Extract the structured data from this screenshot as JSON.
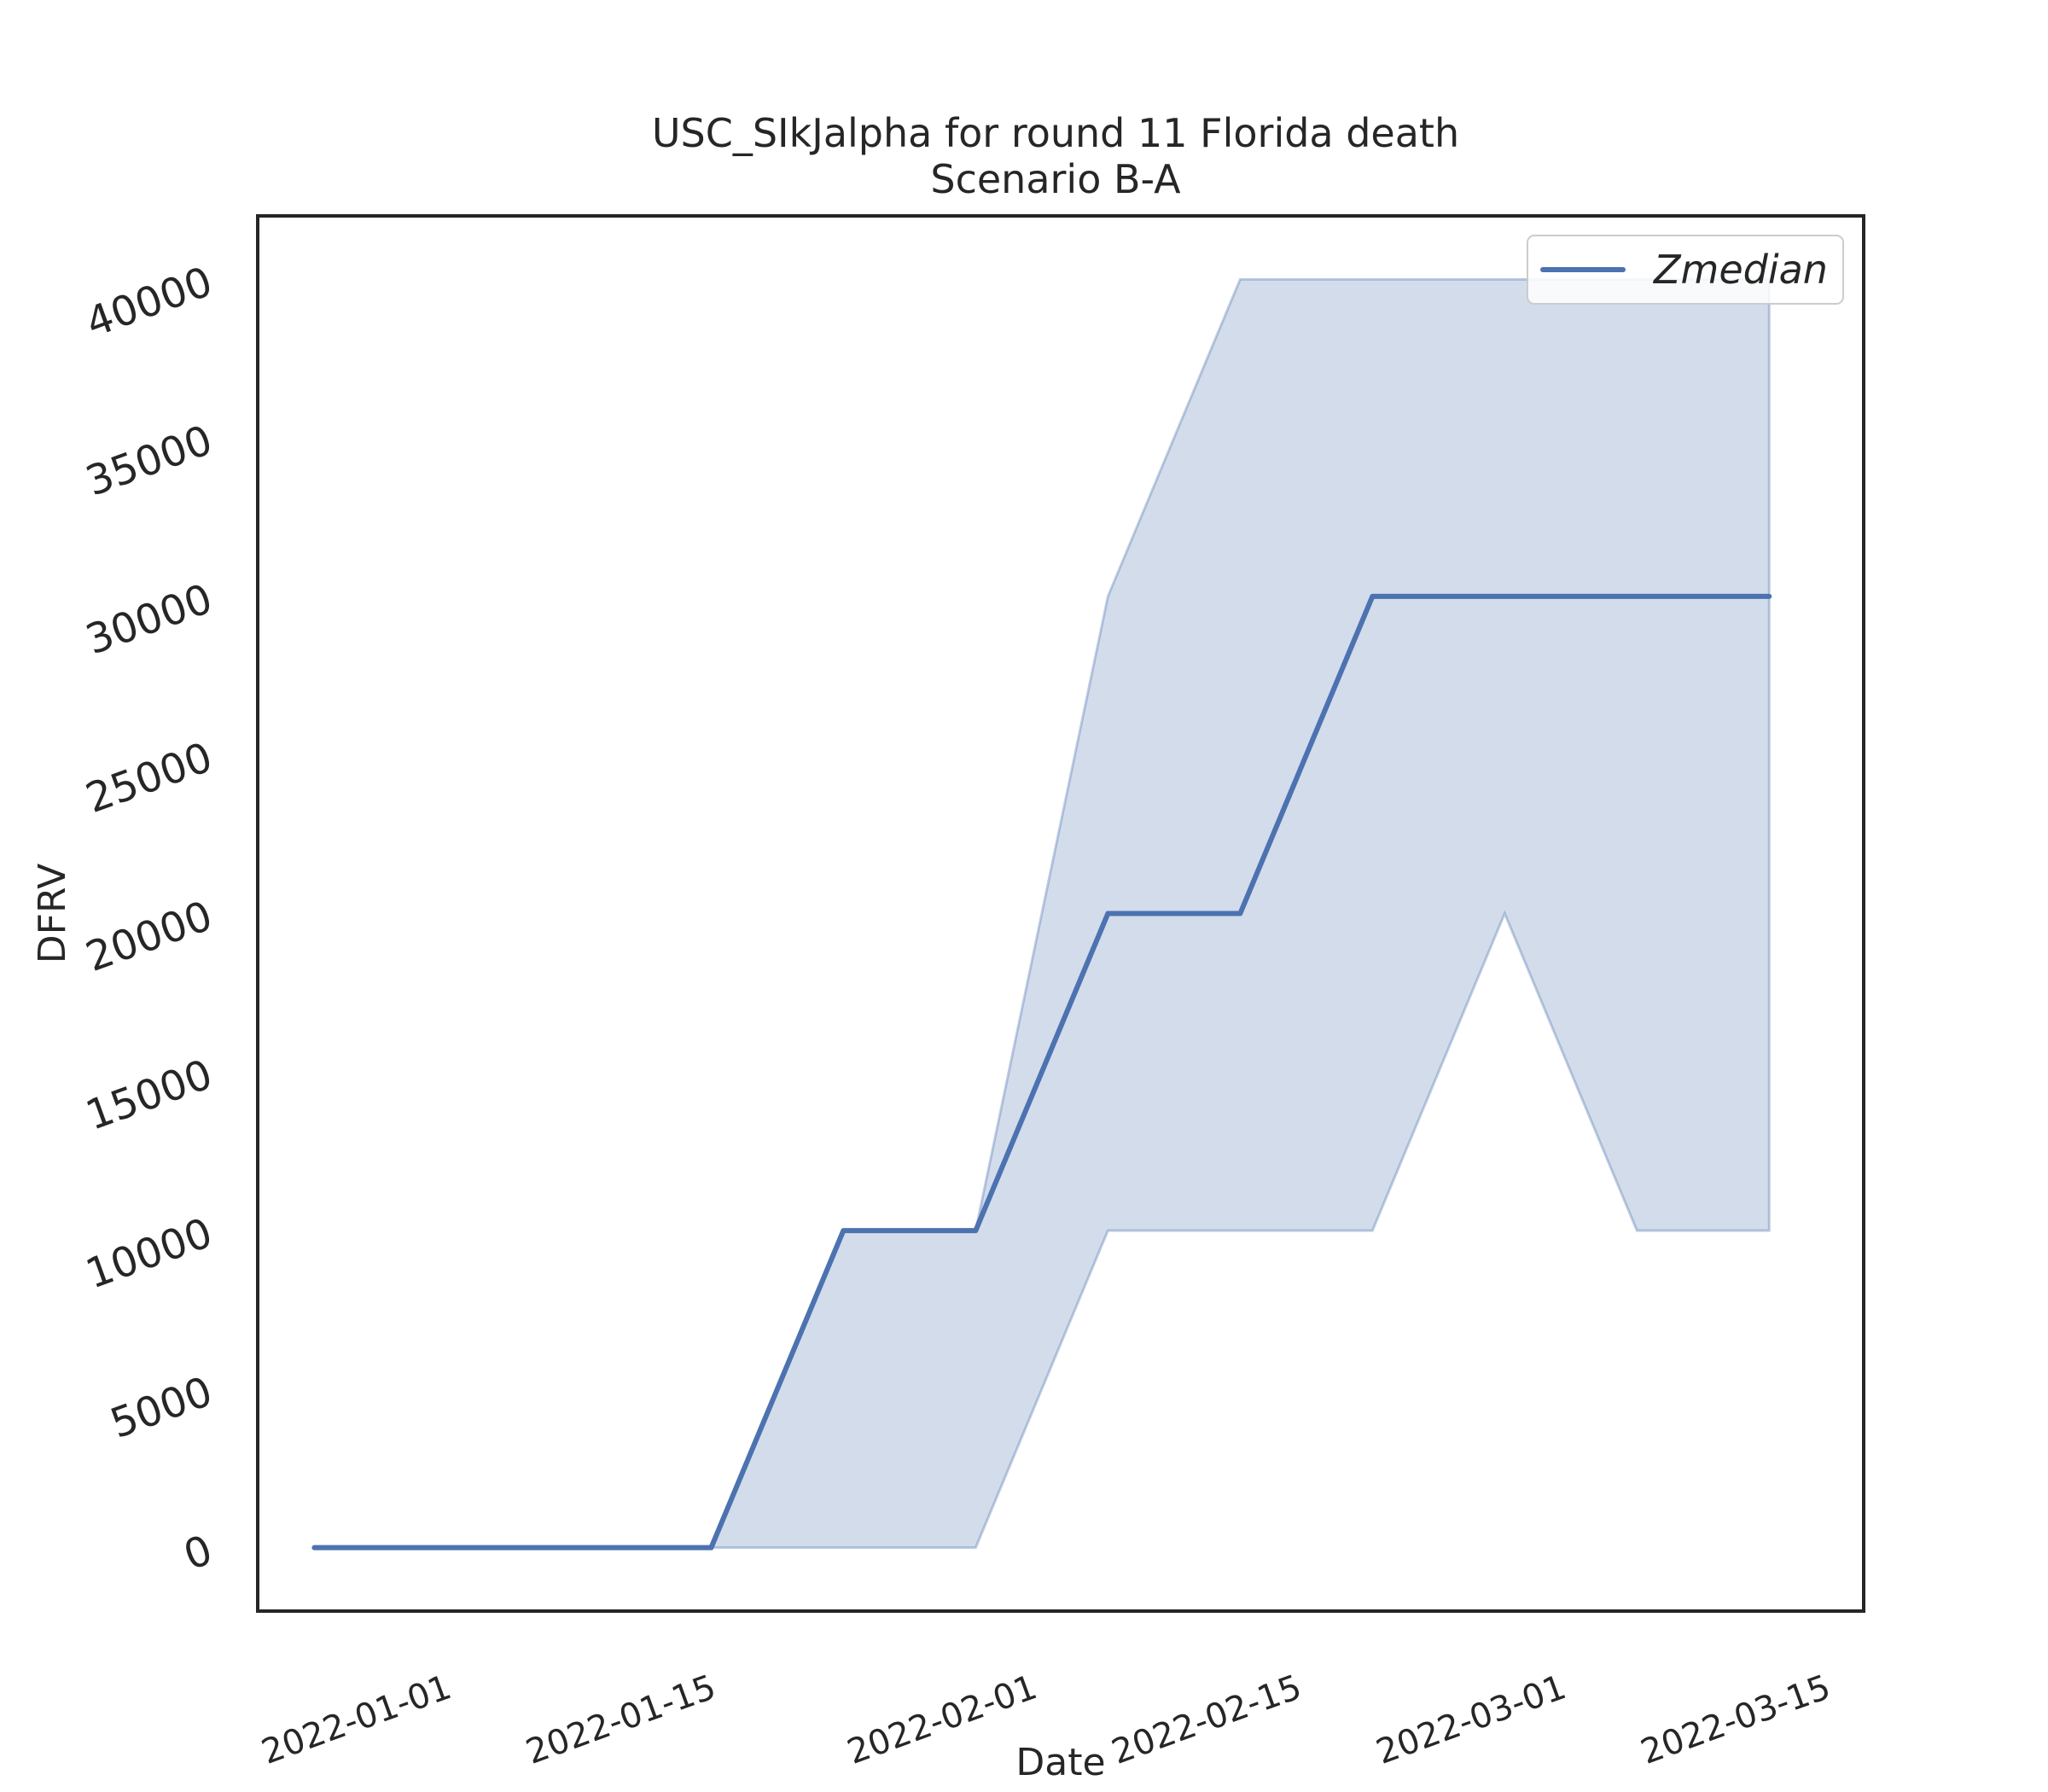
{
  "chart_data": {
    "type": "line",
    "title": "USC_SIkJalpha for round 11 Florida death",
    "subtitle": "Scenario B-A",
    "xlabel": "Date",
    "ylabel": "DFRV",
    "x": [
      "2021-12-25",
      "2022-01-01",
      "2022-01-08",
      "2022-01-15",
      "2022-01-22",
      "2022-01-29",
      "2022-02-05",
      "2022-02-12",
      "2022-02-19",
      "2022-02-26",
      "2022-03-05",
      "2022-03-12"
    ],
    "series": [
      {
        "name": "Zmedian",
        "values": [
          0,
          0,
          0,
          0,
          10000,
          10000,
          20000,
          20000,
          30000,
          30000,
          30000,
          30000
        ],
        "color": "#4c72b0"
      }
    ],
    "band": {
      "lower": [
        0,
        0,
        0,
        0,
        0,
        0,
        10000,
        10000,
        10000,
        20000,
        10000,
        10000
      ],
      "upper": [
        0,
        0,
        0,
        0,
        10000,
        10000,
        30000,
        40000,
        40000,
        40000,
        40000,
        40000
      ],
      "color": "#4c72b0",
      "opacity": 0.25
    },
    "xticks": [
      "2022-01-01",
      "2022-01-15",
      "2022-02-01",
      "2022-02-15",
      "2022-03-01",
      "2022-03-15"
    ],
    "yticks": [
      0,
      5000,
      10000,
      15000,
      20000,
      25000,
      30000,
      35000,
      40000
    ],
    "xlim": [
      "2021-12-22",
      "2022-03-17"
    ],
    "ylim": [
      -2000,
      42000
    ],
    "grid": false,
    "legend_position": "top-right"
  }
}
